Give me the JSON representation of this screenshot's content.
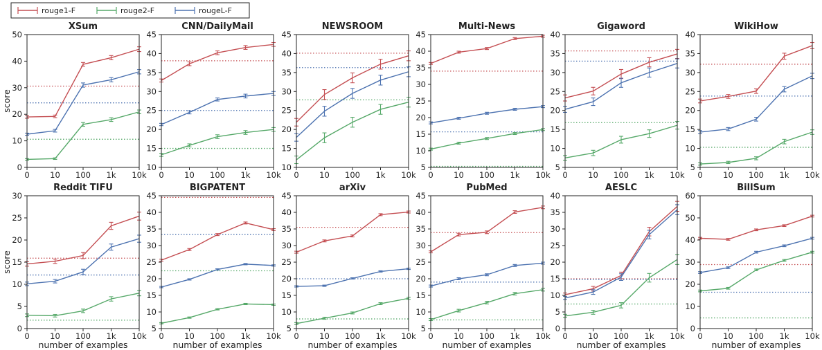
{
  "legend": [
    {
      "name": "rouge1-F",
      "color": "#c44e52"
    },
    {
      "name": "rouge2-F",
      "color": "#55a868"
    },
    {
      "name": "rougeL-F",
      "color": "#4c72b0"
    }
  ],
  "shared": {
    "xlabel": "number of examples",
    "ylabel": "score",
    "x_ticks": [
      "0",
      "10",
      "100",
      "1k",
      "10k"
    ],
    "baseline_style": "dotted horizontal line per series"
  },
  "chart_data": [
    {
      "type": "line",
      "title": "XSum",
      "categories": [
        "0",
        "10",
        "100",
        "1k",
        "10k"
      ],
      "ylim": [
        0,
        50
      ],
      "yticks": [
        0,
        10,
        20,
        30,
        40,
        50
      ],
      "series": [
        {
          "name": "rouge1-F",
          "values": [
            19.0,
            19.2,
            38.8,
            41.3,
            44.5
          ],
          "err": [
            0.5,
            0.5,
            0.7,
            0.8,
            0.9
          ],
          "baseline": 30.6
        },
        {
          "name": "rouge2-F",
          "values": [
            3.0,
            3.3,
            16.2,
            18.0,
            20.9
          ],
          "err": [
            0.3,
            0.3,
            0.7,
            0.7,
            0.7
          ],
          "baseline": 10.6
        },
        {
          "name": "rougeL-F",
          "values": [
            12.5,
            13.8,
            31.0,
            33.0,
            36.0
          ],
          "err": [
            0.4,
            0.5,
            0.8,
            0.8,
            0.8
          ],
          "baseline": 24.3
        }
      ]
    },
    {
      "type": "line",
      "title": "CNN/DailyMail",
      "categories": [
        "0",
        "10",
        "100",
        "1k",
        "10k"
      ],
      "ylim": [
        10,
        45
      ],
      "yticks": [
        10,
        15,
        20,
        25,
        30,
        35,
        40,
        45
      ],
      "series": [
        {
          "name": "rouge1-F",
          "values": [
            32.9,
            37.3,
            40.2,
            41.6,
            42.4
          ],
          "err": [
            0.4,
            0.5,
            0.5,
            0.5,
            0.5
          ],
          "baseline": 38.1
        },
        {
          "name": "rouge2-F",
          "values": [
            13.3,
            15.8,
            18.1,
            19.2,
            20.0
          ],
          "err": [
            0.4,
            0.4,
            0.5,
            0.5,
            0.5
          ],
          "baseline": 15.0
        },
        {
          "name": "rougeL-F",
          "values": [
            21.3,
            24.5,
            27.9,
            28.8,
            29.5
          ],
          "err": [
            0.3,
            0.4,
            0.4,
            0.5,
            0.5
          ],
          "baseline": 25.0
        }
      ]
    },
    {
      "type": "line",
      "title": "NEWSROOM",
      "categories": [
        "0",
        "10",
        "100",
        "1k",
        "10k"
      ],
      "ylim": [
        10,
        45
      ],
      "yticks": [
        10,
        15,
        20,
        25,
        30,
        35,
        40,
        45
      ],
      "series": [
        {
          "name": "rouge1-F",
          "values": [
            21.9,
            29.2,
            33.6,
            37.2,
            39.4
          ],
          "err": [
            1.0,
            1.3,
            1.3,
            1.3,
            1.3
          ],
          "baseline": 40.1
        },
        {
          "name": "rouge2-F",
          "values": [
            12.0,
            17.8,
            21.9,
            25.3,
            27.2
          ],
          "err": [
            1.0,
            1.3,
            1.3,
            1.3,
            1.3
          ],
          "baseline": 27.8
        },
        {
          "name": "rougeL-F",
          "values": [
            17.9,
            24.8,
            29.5,
            33.0,
            35.2
          ],
          "err": [
            1.0,
            1.3,
            1.3,
            1.3,
            1.3
          ],
          "baseline": 36.3
        }
      ]
    },
    {
      "type": "line",
      "title": "Multi-News",
      "categories": [
        "0",
        "10",
        "100",
        "1k",
        "10k"
      ],
      "ylim": [
        5,
        45
      ],
      "yticks": [
        5,
        10,
        15,
        20,
        25,
        30,
        35,
        40,
        45
      ],
      "series": [
        {
          "name": "rouge1-F",
          "values": [
            36.3,
            39.7,
            40.8,
            43.8,
            44.5
          ],
          "err": [
            0.3,
            0.3,
            0.3,
            0.3,
            0.3
          ],
          "baseline": 34.0
        },
        {
          "name": "rouge2-F",
          "values": [
            10.5,
            12.3,
            13.7,
            15.2,
            16.4
          ],
          "err": [
            0.3,
            0.3,
            0.3,
            0.3,
            0.3
          ],
          "baseline": 5.3
        },
        {
          "name": "rougeL-F",
          "values": [
            18.4,
            19.8,
            21.3,
            22.5,
            23.3
          ],
          "err": [
            0.3,
            0.3,
            0.3,
            0.3,
            0.3
          ],
          "baseline": 15.7
        }
      ]
    },
    {
      "type": "line",
      "title": "Gigaword",
      "categories": [
        "0",
        "10",
        "100",
        "1k",
        "10k"
      ],
      "ylim": [
        5,
        40
      ],
      "yticks": [
        5,
        10,
        15,
        20,
        25,
        30,
        35,
        40
      ],
      "series": [
        {
          "name": "rouge1-F",
          "values": [
            23.3,
            25.1,
            29.6,
            32.7,
            34.9
          ],
          "err": [
            0.8,
            1.0,
            1.2,
            1.2,
            1.2
          ],
          "baseline": 35.7
        },
        {
          "name": "rouge2-F",
          "values": [
            7.5,
            8.8,
            12.3,
            13.9,
            16.1
          ],
          "err": [
            0.6,
            0.7,
            0.9,
            1.0,
            1.0
          ],
          "baseline": 16.8
        },
        {
          "name": "rougeL-F",
          "values": [
            20.3,
            22.3,
            27.3,
            30.0,
            32.4
          ],
          "err": [
            0.8,
            1.0,
            1.2,
            1.2,
            1.2
          ],
          "baseline": 33.0
        }
      ]
    },
    {
      "type": "line",
      "title": "WikiHow",
      "categories": [
        "0",
        "10",
        "100",
        "1k",
        "10k"
      ],
      "ylim": [
        5,
        40
      ],
      "yticks": [
        5,
        10,
        15,
        20,
        25,
        30,
        35,
        40
      ],
      "series": [
        {
          "name": "rouge1-F",
          "values": [
            22.5,
            23.7,
            25.1,
            34.3,
            37.1
          ],
          "err": [
            0.5,
            0.5,
            0.6,
            0.8,
            0.8
          ],
          "baseline": 32.2
        },
        {
          "name": "rouge2-F",
          "values": [
            5.9,
            6.3,
            7.4,
            11.8,
            14.3
          ],
          "err": [
            0.3,
            0.3,
            0.4,
            0.6,
            0.6
          ],
          "baseline": 10.3
        },
        {
          "name": "rougeL-F",
          "values": [
            14.3,
            15.1,
            17.7,
            25.6,
            29.1
          ],
          "err": [
            0.4,
            0.4,
            0.5,
            0.7,
            0.7
          ],
          "baseline": 23.8
        }
      ]
    },
    {
      "type": "line",
      "title": "Reddit TIFU",
      "categories": [
        "0",
        "10",
        "100",
        "1k",
        "10k"
      ],
      "ylim": [
        0,
        30
      ],
      "yticks": [
        0,
        5,
        10,
        15,
        20,
        25,
        30
      ],
      "series": [
        {
          "name": "rouge1-F",
          "values": [
            14.6,
            15.2,
            16.5,
            23.2,
            25.4
          ],
          "err": [
            0.5,
            0.5,
            0.7,
            0.8,
            0.9
          ],
          "baseline": 15.9
        },
        {
          "name": "rouge2-F",
          "values": [
            3.0,
            2.9,
            4.0,
            6.7,
            8.0
          ],
          "err": [
            0.3,
            0.3,
            0.4,
            0.5,
            0.6
          ],
          "baseline": 1.9
        },
        {
          "name": "rougeL-F",
          "values": [
            10.1,
            10.7,
            12.8,
            18.4,
            20.3
          ],
          "err": [
            0.4,
            0.4,
            0.6,
            0.7,
            0.8
          ],
          "baseline": 12.1
        }
      ]
    },
    {
      "type": "line",
      "title": "BIGPATENT",
      "categories": [
        "0",
        "10",
        "100",
        "1k",
        "10k"
      ],
      "ylim": [
        5,
        45
      ],
      "yticks": [
        5,
        10,
        15,
        20,
        25,
        30,
        35,
        40,
        45
      ],
      "series": [
        {
          "name": "rouge1-F",
          "values": [
            25.6,
            28.8,
            33.3,
            36.8,
            34.8
          ],
          "err": [
            0.3,
            0.3,
            0.3,
            0.3,
            0.3
          ],
          "baseline": 44.5
        },
        {
          "name": "rouge2-F",
          "values": [
            6.6,
            8.3,
            10.8,
            12.4,
            12.2
          ],
          "err": [
            0.2,
            0.2,
            0.2,
            0.2,
            0.2
          ],
          "baseline": 22.4
        },
        {
          "name": "rougeL-F",
          "values": [
            17.5,
            19.8,
            22.8,
            24.4,
            24.0
          ],
          "err": [
            0.2,
            0.2,
            0.2,
            0.2,
            0.2
          ],
          "baseline": 33.4
        }
      ]
    },
    {
      "type": "line",
      "title": "arXiv",
      "categories": [
        "0",
        "10",
        "100",
        "1k",
        "10k"
      ],
      "ylim": [
        5,
        45
      ],
      "yticks": [
        5,
        10,
        15,
        20,
        25,
        30,
        35,
        40,
        45
      ],
      "series": [
        {
          "name": "rouge1-F",
          "values": [
            28.0,
            31.4,
            32.9,
            39.3,
            40.1
          ],
          "err": [
            0.3,
            0.3,
            0.3,
            0.3,
            0.3
          ],
          "baseline": 35.5
        },
        {
          "name": "rouge2-F",
          "values": [
            6.5,
            8.1,
            9.7,
            12.5,
            14.1
          ],
          "err": [
            0.3,
            0.3,
            0.3,
            0.3,
            0.3
          ],
          "baseline": 7.9
        },
        {
          "name": "rougeL-F",
          "values": [
            17.7,
            17.9,
            20.1,
            22.2,
            23.0
          ],
          "err": [
            0.2,
            0.2,
            0.2,
            0.2,
            0.2
          ],
          "baseline": 20.0
        }
      ]
    },
    {
      "type": "line",
      "title": "PubMed",
      "categories": [
        "0",
        "10",
        "100",
        "1k",
        "10k"
      ],
      "ylim": [
        5,
        45
      ],
      "yticks": [
        5,
        10,
        15,
        20,
        25,
        30,
        35,
        40,
        45
      ],
      "series": [
        {
          "name": "rouge1-F",
          "values": [
            28.1,
            33.3,
            34.0,
            40.1,
            41.5
          ],
          "err": [
            0.3,
            0.4,
            0.4,
            0.4,
            0.4
          ],
          "baseline": 33.9
        },
        {
          "name": "rouge2-F",
          "values": [
            7.7,
            10.4,
            12.8,
            15.5,
            16.7
          ],
          "err": [
            0.3,
            0.4,
            0.4,
            0.4,
            0.4
          ],
          "baseline": 7.6
        },
        {
          "name": "rougeL-F",
          "values": [
            17.8,
            20.0,
            21.2,
            24.0,
            24.7
          ],
          "err": [
            0.3,
            0.3,
            0.3,
            0.3,
            0.3
          ],
          "baseline": 19.0
        }
      ]
    },
    {
      "type": "line",
      "title": "AESLC",
      "categories": [
        "0",
        "10",
        "100",
        "1k",
        "10k"
      ],
      "ylim": [
        0,
        40
      ],
      "yticks": [
        0,
        5,
        10,
        15,
        20,
        25,
        30,
        35,
        40
      ],
      "series": [
        {
          "name": "rouge1-F",
          "values": [
            10.2,
            12.0,
            16.0,
            29.2,
            36.8
          ],
          "err": [
            0.5,
            0.7,
            1.0,
            1.3,
            1.5
          ],
          "baseline": 15.0
        },
        {
          "name": "rouge2-F",
          "values": [
            3.8,
            4.9,
            7.0,
            15.3,
            20.8
          ],
          "err": [
            0.5,
            0.6,
            0.8,
            1.3,
            1.5
          ],
          "baseline": 7.4
        },
        {
          "name": "rougeL-F",
          "values": [
            9.2,
            11.0,
            15.5,
            28.3,
            35.8
          ],
          "err": [
            0.5,
            0.7,
            1.0,
            1.3,
            1.5
          ],
          "baseline": 14.8
        }
      ]
    },
    {
      "type": "line",
      "title": "BillSum",
      "categories": [
        "0",
        "10",
        "100",
        "1k",
        "10k"
      ],
      "ylim": [
        0,
        60
      ],
      "yticks": [
        0,
        10,
        20,
        30,
        40,
        50,
        60
      ],
      "series": [
        {
          "name": "rouge1-F",
          "values": [
            40.8,
            40.3,
            44.6,
            46.5,
            50.8
          ],
          "err": [
            0.4,
            0.4,
            0.4,
            0.4,
            0.4
          ],
          "baseline": 28.9
        },
        {
          "name": "rouge2-F",
          "values": [
            17.0,
            18.2,
            26.5,
            30.8,
            34.5
          ],
          "err": [
            0.4,
            0.4,
            0.4,
            0.4,
            0.4
          ],
          "baseline": 4.8
        },
        {
          "name": "rougeL-F",
          "values": [
            25.3,
            27.5,
            34.5,
            37.4,
            40.8
          ],
          "err": [
            0.4,
            0.4,
            0.4,
            0.4,
            0.4
          ],
          "baseline": 16.4
        }
      ]
    }
  ]
}
